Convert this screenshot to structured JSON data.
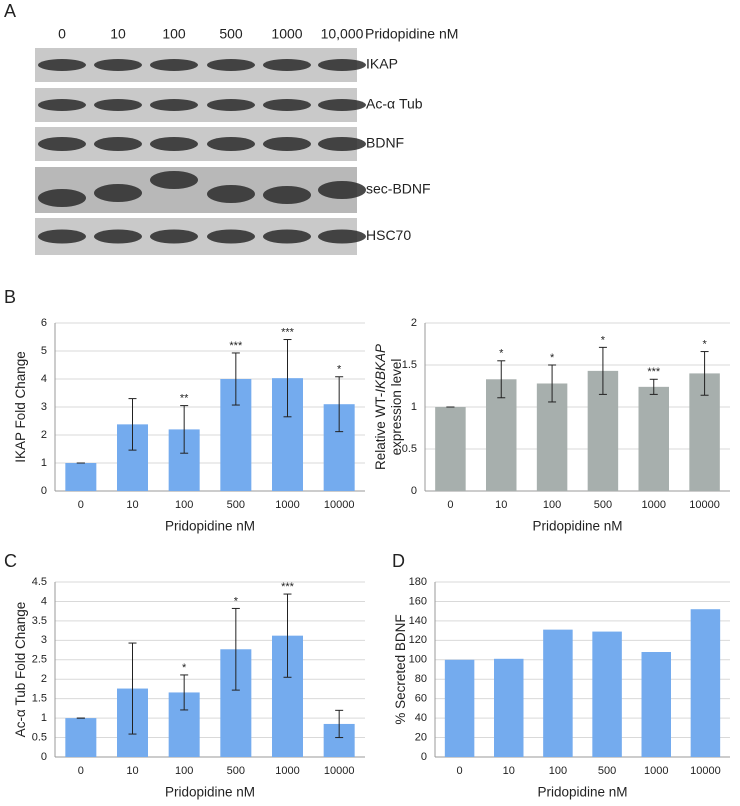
{
  "panel_labels": [
    "A",
    "B",
    "C",
    "D"
  ],
  "blot": {
    "lanes": [
      "0",
      "10",
      "100",
      "500",
      "1000",
      "10,000"
    ],
    "x_label": "Pridopidine nM",
    "rows": [
      "IKAP",
      "Ac-α Tub",
      "BDNF",
      "sec-BDNF",
      "HSC70"
    ]
  },
  "chart_data": [
    {
      "type": "bar",
      "x_label": "Pridopidine nM",
      "y_label": [
        "IKAP Fold Change"
      ],
      "categories": [
        "0",
        "10",
        "100",
        "500",
        "1000",
        "10000"
      ],
      "values": [
        1,
        2.38,
        2.2,
        4,
        4.03,
        3.1
      ],
      "errors": [
        0,
        0.92,
        0.85,
        0.93,
        1.38,
        0.98
      ],
      "annotations": [
        null,
        null,
        "**",
        "***",
        "***",
        "*"
      ],
      "color": "#74abee",
      "ylim": [
        0,
        6
      ],
      "yticks": [
        0,
        1,
        2,
        3,
        4,
        5,
        6
      ],
      "grid": true
    },
    {
      "type": "bar",
      "x_label": "Pridopidine nM",
      "y_label": [
        "Relative WT-",
        "IKBKAP",
        "expression level"
      ],
      "categories": [
        "0",
        "10",
        "100",
        "500",
        "1000",
        "10000"
      ],
      "values": [
        1,
        1.33,
        1.28,
        1.43,
        1.24,
        1.4
      ],
      "errors": [
        0,
        0.22,
        0.22,
        0.28,
        0.09,
        0.26
      ],
      "annotations": [
        null,
        "*",
        "*",
        "*",
        "***",
        "*"
      ],
      "color": "#a7afad",
      "ylim": [
        0,
        2
      ],
      "yticks": [
        0,
        0.5,
        1,
        1.5,
        2
      ],
      "grid": true
    },
    {
      "type": "bar",
      "x_label": "Pridopidine nM",
      "y_label": [
        "Ac-α Tub Fold Change"
      ],
      "categories": [
        "0",
        "10",
        "100",
        "500",
        "1000",
        "10000"
      ],
      "values": [
        1,
        1.76,
        1.66,
        2.77,
        3.12,
        0.85
      ],
      "errors": [
        0,
        1.17,
        0.45,
        1.05,
        1.07,
        0.35
      ],
      "annotations": [
        null,
        null,
        "*",
        "*",
        "***",
        null
      ],
      "color": "#74abee",
      "ylim": [
        0,
        4.5
      ],
      "yticks": [
        0,
        0.5,
        1,
        1.5,
        2,
        2.5,
        3,
        3.5,
        4,
        4.5
      ],
      "grid": true
    },
    {
      "type": "bar",
      "x_label": "Pridopidine nM",
      "y_label": [
        "% Secreted BDNF"
      ],
      "categories": [
        "0",
        "10",
        "100",
        "500",
        "1000",
        "10000"
      ],
      "values": [
        100,
        101,
        131,
        129,
        108,
        152
      ],
      "color": "#74abee",
      "ylim": [
        0,
        180
      ],
      "yticks": [
        0,
        20,
        40,
        60,
        80,
        100,
        120,
        140,
        160,
        180
      ],
      "grid": true
    }
  ]
}
